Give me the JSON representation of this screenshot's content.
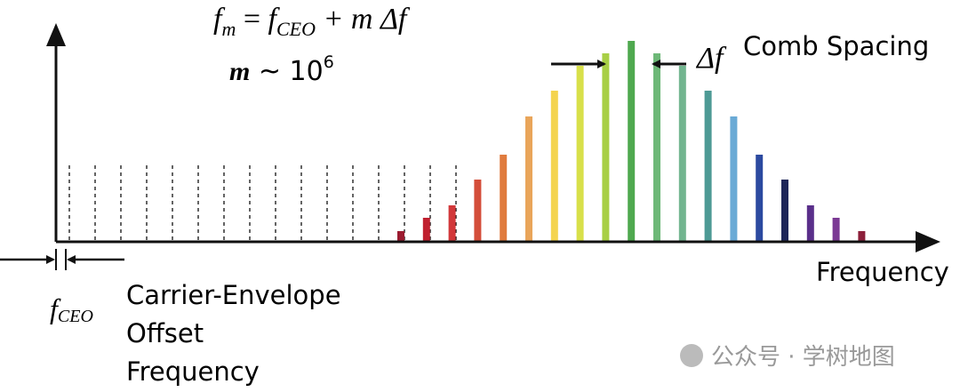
{
  "equation": {
    "f1": "f",
    "sub1": "m",
    "eq": " = ",
    "f2": "f",
    "sub2": "CEO",
    "rest": " + m Δf"
  },
  "order": {
    "m": "m",
    "approx": " ~ 10",
    "exp": "6"
  },
  "spacing": {
    "symbol": "Δf",
    "label": "Comb Spacing"
  },
  "axis_label": "Frequency",
  "offset": {
    "f": "f",
    "sub": "CEO",
    "lines": [
      "Carrier-Envelope",
      "Offset",
      "Frequency"
    ]
  },
  "watermark": "公众号 · 学树地图"
}
